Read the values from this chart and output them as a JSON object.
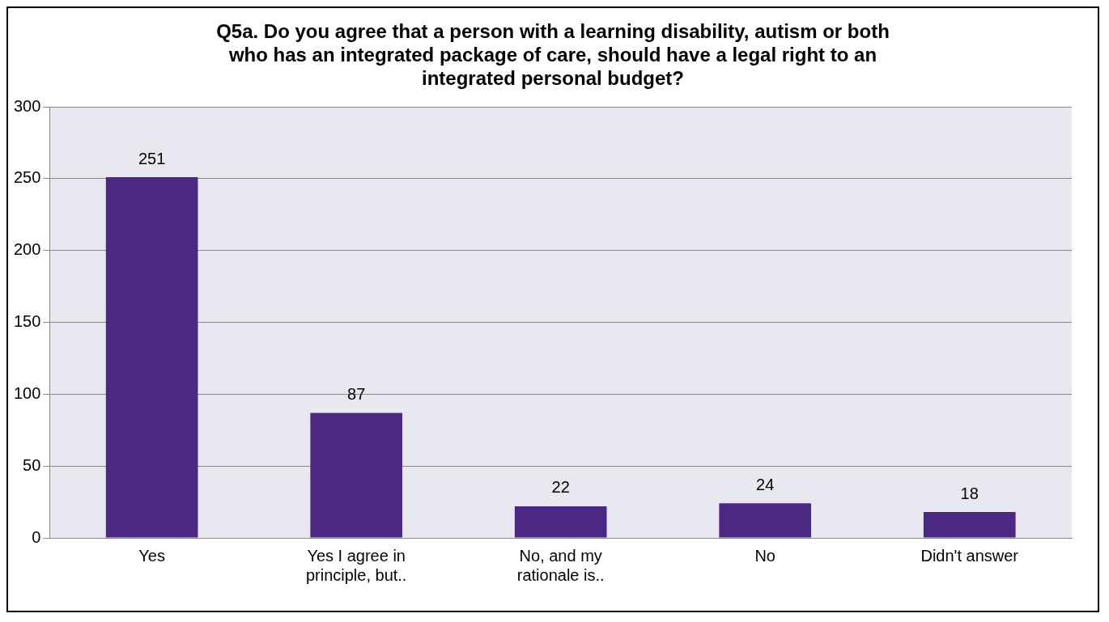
{
  "chart_data": {
    "type": "bar",
    "title": "Q5a. Do you agree that a person with a learning disability, autism or both who has an integrated package of care, should have a legal right to an integrated personal budget?",
    "categories": [
      "Yes",
      "Yes I agree in principle, but..",
      "No, and my rationale is..",
      "No",
      "Didn't answer"
    ],
    "values": [
      251,
      87,
      22,
      24,
      18
    ],
    "color": "#4b2883",
    "ylim": [
      0,
      300
    ],
    "yticks": [
      0,
      50,
      100,
      150,
      200,
      250,
      300
    ],
    "grid": "y",
    "legend": false,
    "data_labels": true
  }
}
